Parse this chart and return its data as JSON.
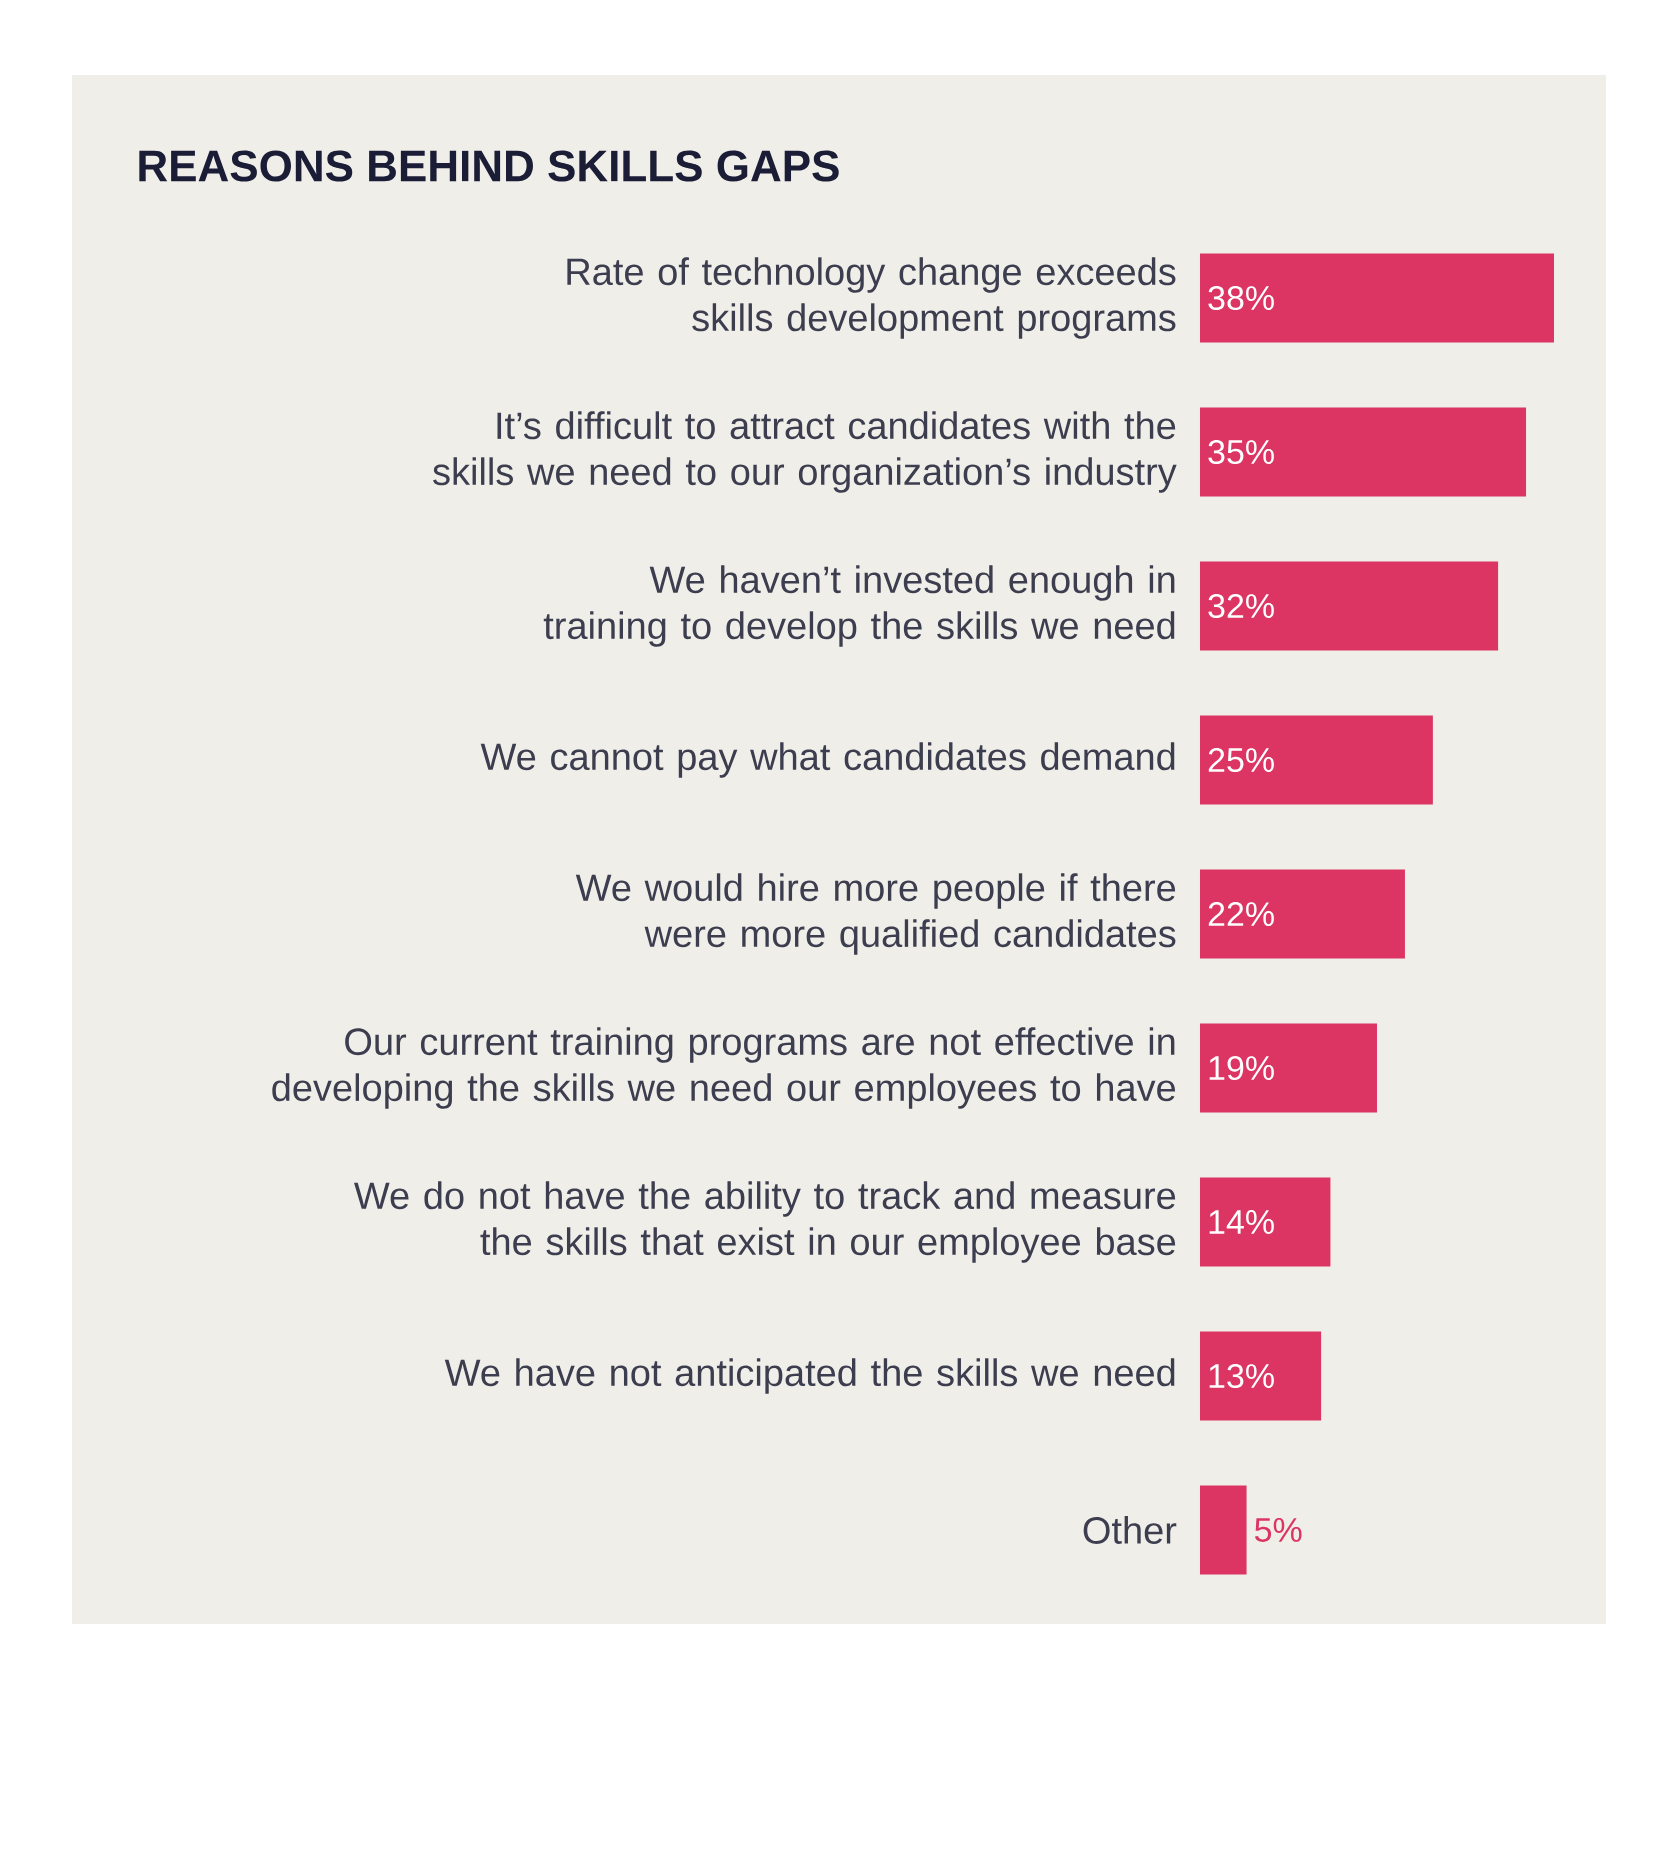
{
  "chart_data": {
    "type": "bar",
    "orientation": "horizontal",
    "title": "REASONS BEHIND SKILLS GAPS",
    "categories": [
      "Rate of technology change exceeds skills development programs",
      "It’s difficult to attract candidates with the skills we need to our organization’s industry",
      "We haven’t invested enough in training to develop the skills we need",
      "We cannot pay what candidates demand",
      "We would hire more people if there were more qualified candidates",
      "Our current training programs are not effective in developing the skills we need our employees to have",
      "We do not have the ability to track and measure the skills that exist in our employee base",
      "We have not anticipated the skills we need",
      "Other"
    ],
    "values": [
      38,
      35,
      32,
      25,
      22,
      19,
      14,
      13,
      5
    ],
    "value_labels": [
      "38%",
      "35%",
      "32%",
      "25%",
      "22%",
      "19%",
      "14%",
      "13%",
      "5%"
    ],
    "color": "#dc3563",
    "tick_labels": "y"
  }
}
